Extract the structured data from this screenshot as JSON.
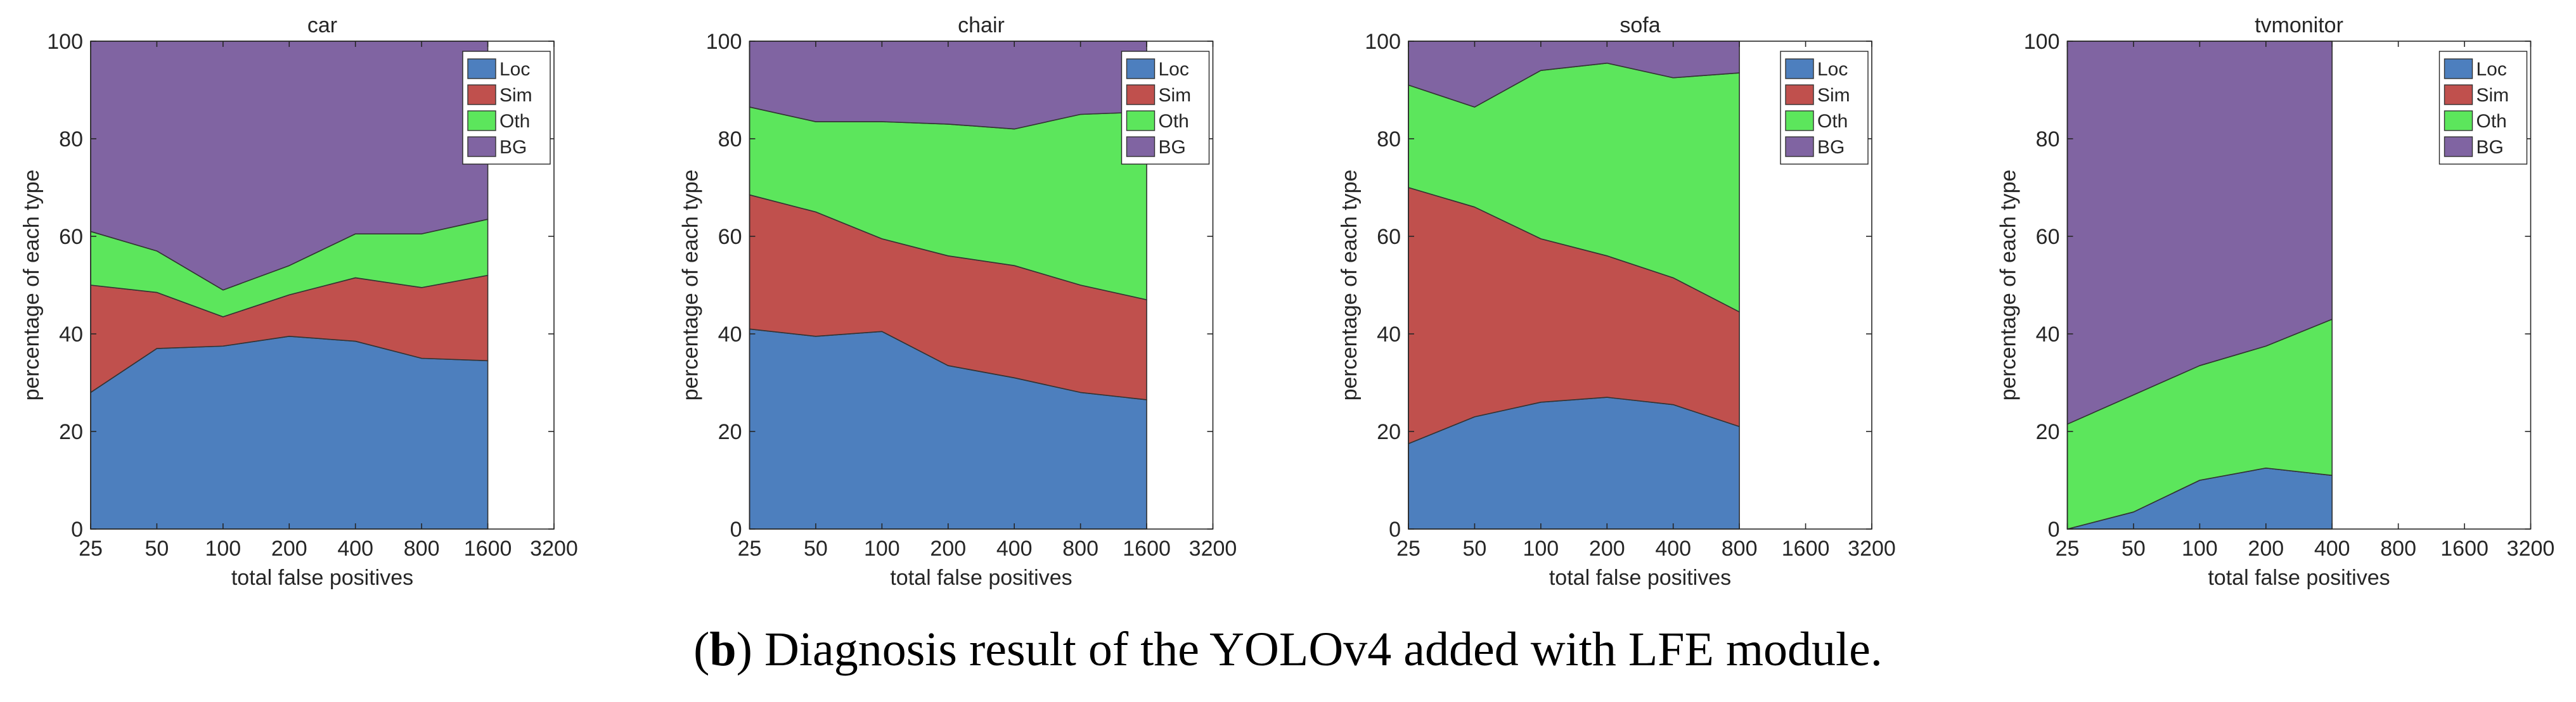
{
  "chart_data": [
    {
      "type": "area",
      "stacked": true,
      "title": "car",
      "xscale": "log",
      "x": [
        25,
        50,
        100,
        200,
        400,
        800,
        1600
      ],
      "xlim": [
        25,
        3200
      ],
      "xticks": [
        25,
        50,
        100,
        200,
        400,
        800,
        1600,
        3200
      ],
      "ylim": [
        0,
        100
      ],
      "yticks": [
        0,
        20,
        40,
        60,
        80,
        100
      ],
      "xlabel": "total false positives",
      "ylabel": "percentage of each type",
      "legend": "upper right",
      "series": [
        {
          "name": "Loc",
          "color": "#4d7fbe",
          "values": [
            28,
            37,
            37.5,
            39.5,
            38.5,
            35,
            34.5
          ]
        },
        {
          "name": "Sim",
          "color": "#c0504d",
          "values": [
            22,
            11.5,
            6,
            8.5,
            13,
            14.5,
            17.5
          ]
        },
        {
          "name": "Oth",
          "color": "#5ce65c",
          "values": [
            11,
            8.5,
            5.5,
            6,
            9,
            11,
            11.5
          ]
        },
        {
          "name": "BG",
          "color": "#8064a2",
          "values": [
            39,
            43,
            51,
            46,
            39.5,
            39.5,
            36.5
          ]
        }
      ]
    },
    {
      "type": "area",
      "stacked": true,
      "title": "chair",
      "xscale": "log",
      "x": [
        25,
        50,
        100,
        200,
        400,
        800,
        1600
      ],
      "xlim": [
        25,
        3200
      ],
      "xticks": [
        25,
        50,
        100,
        200,
        400,
        800,
        1600,
        3200
      ],
      "ylim": [
        0,
        100
      ],
      "yticks": [
        0,
        20,
        40,
        60,
        80,
        100
      ],
      "xlabel": "total false positives",
      "ylabel": "percentage of each type",
      "legend": "upper right",
      "series": [
        {
          "name": "Loc",
          "color": "#4d7fbe",
          "values": [
            41,
            39.5,
            40.5,
            33.5,
            31,
            28,
            26.5
          ]
        },
        {
          "name": "Sim",
          "color": "#c0504d",
          "values": [
            27.5,
            25.5,
            19,
            22.5,
            23,
            22,
            20.5
          ]
        },
        {
          "name": "Oth",
          "color": "#5ce65c",
          "values": [
            18,
            18.5,
            24,
            27,
            28,
            35,
            38.5
          ]
        },
        {
          "name": "BG",
          "color": "#8064a2",
          "values": [
            13.5,
            16.5,
            16.5,
            17,
            18,
            15,
            14.5
          ]
        }
      ]
    },
    {
      "type": "area",
      "stacked": true,
      "title": "sofa",
      "xscale": "log",
      "x": [
        25,
        50,
        100,
        200,
        400,
        800
      ],
      "xlim": [
        25,
        3200
      ],
      "xticks": [
        25,
        50,
        100,
        200,
        400,
        800,
        1600,
        3200
      ],
      "ylim": [
        0,
        100
      ],
      "yticks": [
        0,
        20,
        40,
        60,
        80,
        100
      ],
      "xlabel": "total false positives",
      "ylabel": "percentage of each type",
      "legend": "upper right",
      "series": [
        {
          "name": "Loc",
          "color": "#4d7fbe",
          "values": [
            17.5,
            23,
            26,
            27,
            25.5,
            21
          ]
        },
        {
          "name": "Sim",
          "color": "#c0504d",
          "values": [
            52.5,
            43,
            33.5,
            29,
            26,
            23.5
          ]
        },
        {
          "name": "Oth",
          "color": "#5ce65c",
          "values": [
            21,
            20.5,
            34.5,
            39.5,
            41,
            49
          ]
        },
        {
          "name": "BG",
          "color": "#8064a2",
          "values": [
            9,
            13.5,
            6,
            4.5,
            7.5,
            6.5
          ]
        }
      ]
    },
    {
      "type": "area",
      "stacked": true,
      "title": "tvmonitor",
      "xscale": "log",
      "x": [
        25,
        50,
        100,
        200,
        400
      ],
      "xlim": [
        25,
        3200
      ],
      "xticks": [
        25,
        50,
        100,
        200,
        400,
        800,
        1600,
        3200
      ],
      "ylim": [
        0,
        100
      ],
      "yticks": [
        0,
        20,
        40,
        60,
        80,
        100
      ],
      "xlabel": "total false positives",
      "ylabel": "percentage of each type",
      "legend": "upper right",
      "series": [
        {
          "name": "Loc",
          "color": "#4d7fbe",
          "values": [
            0,
            3.5,
            10,
            12.5,
            11
          ]
        },
        {
          "name": "Sim",
          "color": "#c0504d",
          "values": [
            0,
            0,
            0,
            0,
            0
          ]
        },
        {
          "name": "Oth",
          "color": "#5ce65c",
          "values": [
            21.5,
            24,
            23.5,
            25,
            32
          ]
        },
        {
          "name": "BG",
          "color": "#8064a2",
          "values": [
            78.5,
            72.5,
            66.5,
            62.5,
            57
          ]
        }
      ]
    }
  ],
  "caption": [
    "(",
    "b",
    ") Diagnosis result of the YOLOv4 added with LFE module."
  ]
}
